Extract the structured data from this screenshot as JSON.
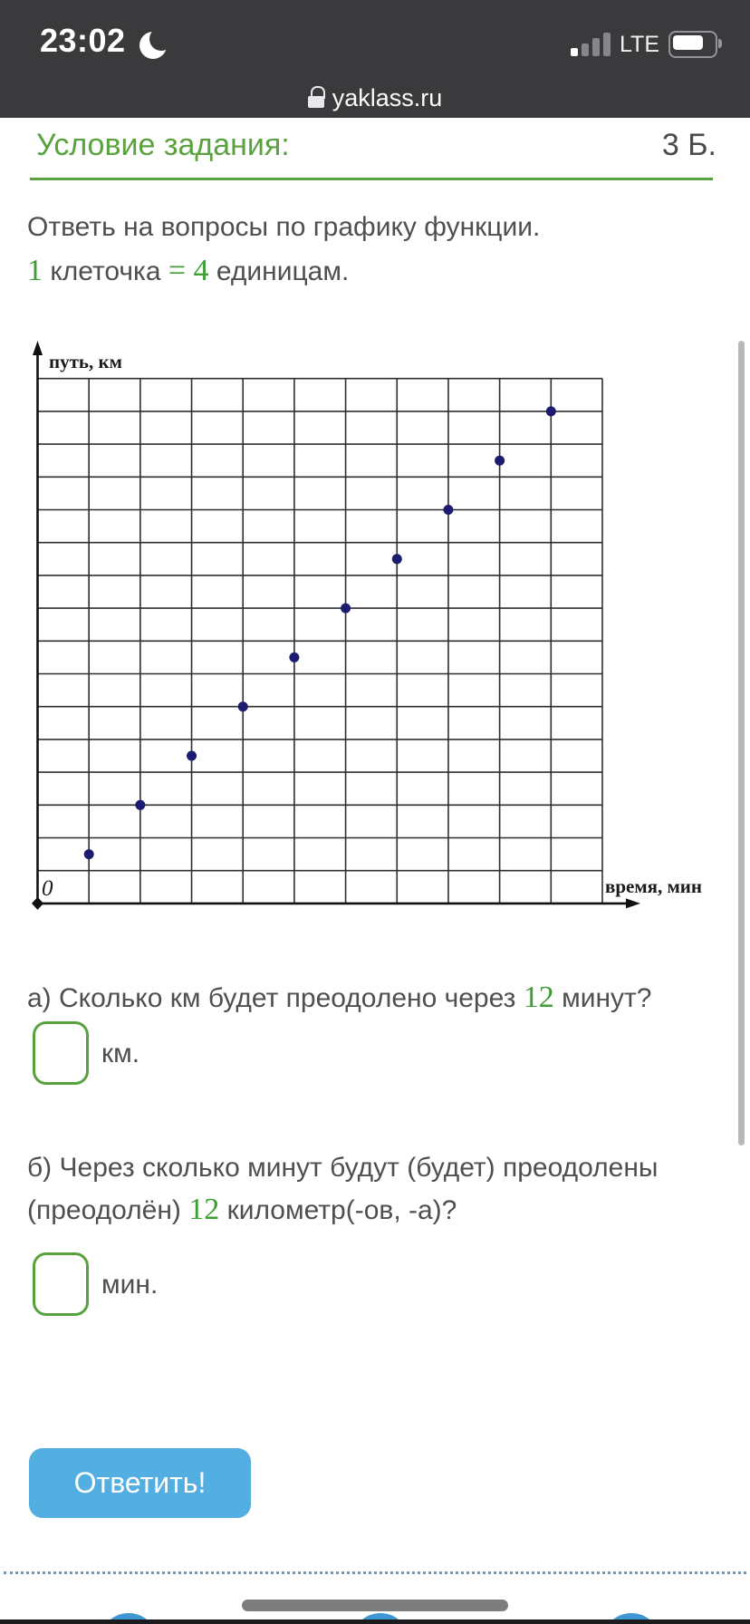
{
  "status_bar": {
    "time": "23:02",
    "moon_icon": "crescent-moon (do not disturb)",
    "network": "LTE",
    "signal_bars_filled": 1,
    "signal_bars_total": 4,
    "battery_level_percent": 78
  },
  "url_bar": {
    "lock_icon": "padlock",
    "domain": "yaklass.ru"
  },
  "task_header": {
    "title": "Условие задания:",
    "points": "3 Б."
  },
  "intro": {
    "line1": "Ответь на вопросы по графику функции.",
    "cell_line": {
      "p1": "1",
      "p2": " клеточка ",
      "p3": "=",
      "p4": " 4",
      "p5": " единицам."
    }
  },
  "chart_data": {
    "type": "scatter",
    "xlabel": "время, мин",
    "ylabel": "путь, км",
    "origin_label": "0",
    "cell_equals_units": 4,
    "grid": {
      "cols": 11,
      "rows": 16,
      "grid_on": true
    },
    "points_in_cells": [
      [
        1,
        1.5
      ],
      [
        2,
        3
      ],
      [
        3,
        4.5
      ],
      [
        4,
        6
      ],
      [
        5,
        7.5
      ],
      [
        6,
        9
      ],
      [
        7,
        10.5
      ],
      [
        8,
        12
      ],
      [
        9,
        13.5
      ],
      [
        10,
        15
      ]
    ],
    "points_in_units": [
      [
        4,
        6
      ],
      [
        8,
        12
      ],
      [
        12,
        18
      ],
      [
        16,
        24
      ],
      [
        20,
        30
      ],
      [
        24,
        36
      ],
      [
        28,
        42
      ],
      [
        32,
        48
      ],
      [
        36,
        54
      ],
      [
        40,
        60
      ]
    ],
    "xlim_units": [
      0,
      44
    ],
    "ylim_units": [
      0,
      64
    ],
    "point_color": "#1b1b70",
    "grid_color": "#2e2e2e",
    "axis_color": "#111111"
  },
  "question_a": {
    "p1": "а) Сколько км будет преодолено через ",
    "num": "12",
    "p2": " минут?",
    "input_value": "",
    "unit_label": "км."
  },
  "question_b": {
    "line1": "б) Через сколько минут будут (будет) преодолены",
    "line2_p1": "(преодолён) ",
    "line2_num": "12",
    "line2_p2": " километр(-ов, -а)?",
    "input_value": "",
    "unit_label": "мин."
  },
  "submit": {
    "label": "Ответить!"
  },
  "colors": {
    "header_bg": "#3a3a3c",
    "accent_green": "#57a33d",
    "math_green": "#3c9e35",
    "button_blue": "#53aee2",
    "text_gray": "#4f4f4f",
    "dot_navy": "#1b1b70"
  }
}
